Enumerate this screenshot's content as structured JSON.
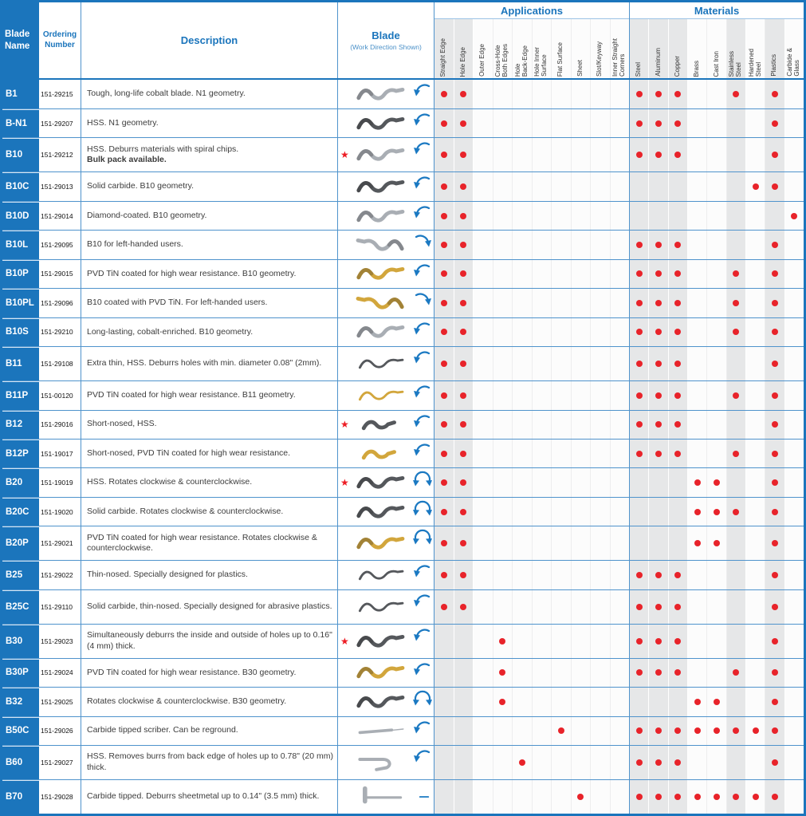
{
  "header": {
    "blade_name": "Blade\nName",
    "ordering_number": "Ordering\nNumber",
    "description": "Description",
    "blade": "Blade",
    "blade_subtitle": "(Work Direction Shown)",
    "applications_title": "Applications",
    "materials_title": "Materials",
    "application_columns": [
      "Straight Edge",
      "Hole Edge",
      "Outer Edge",
      "Cross-Hole\nBoth Edges",
      "Hole\nBack-Edge",
      "Hole Inner\nSurface",
      "Flat Surface",
      "Sheet",
      "Slot/Keyway",
      "Inner Straight\nCorners"
    ],
    "material_columns": [
      "Steel",
      "Aluminum",
      "Copper",
      "Brass",
      "Cast Iron",
      "Stainless\nSteel",
      "Hardened\nSteel",
      "Plastics",
      "Carbide &\nGlass"
    ]
  },
  "icons": {
    "star": "★"
  },
  "colors": {
    "accent_blue": "#1B75BC",
    "grid_line_blue": "#4F93CC",
    "dot_red": "#E8232A",
    "star_red": "#ED1C24",
    "shaded_column": "#E6E7E8",
    "tin_gold": "#D2A63C"
  },
  "rows": [
    {
      "name": "B1",
      "order": "151-29215",
      "desc": "Tough, long-life cobalt blade. N1 geometry.",
      "star": false,
      "shape": "s",
      "color": "silver",
      "mirror": false,
      "arrow": "cw",
      "tall": false,
      "apps": [
        0,
        1
      ],
      "mats": [
        0,
        1,
        2,
        5,
        7
      ]
    },
    {
      "name": "B-N1",
      "order": "151-29207",
      "desc": "HSS. N1 geometry.",
      "star": false,
      "shape": "s",
      "color": "dark",
      "mirror": false,
      "arrow": "cw",
      "tall": false,
      "apps": [
        0,
        1
      ],
      "mats": [
        0,
        1,
        2,
        7
      ]
    },
    {
      "name": "B10",
      "order": "151-29212",
      "desc": "HSS. Deburrs materials with spiral chips.",
      "desc2": "Bulk pack available.",
      "star": true,
      "shape": "s",
      "color": "silver",
      "mirror": false,
      "arrow": "cw",
      "tall": true,
      "apps": [
        0,
        1
      ],
      "mats": [
        0,
        1,
        2,
        7
      ]
    },
    {
      "name": "B10C",
      "order": "151-29013",
      "desc": "Solid carbide. B10 geometry.",
      "star": false,
      "shape": "s",
      "color": "dark",
      "mirror": false,
      "arrow": "cw",
      "tall": false,
      "apps": [
        0,
        1
      ],
      "mats": [
        6,
        7
      ]
    },
    {
      "name": "B10D",
      "order": "151-29014",
      "desc": "Diamond-coated. B10 geometry.",
      "star": false,
      "shape": "s",
      "color": "silver",
      "mirror": false,
      "arrow": "cw",
      "tall": false,
      "apps": [
        0,
        1
      ],
      "mats": [
        8
      ]
    },
    {
      "name": "B10L",
      "order": "151-29095",
      "desc": "B10 for left-handed users.",
      "star": false,
      "shape": "s",
      "color": "silver",
      "mirror": true,
      "arrow": "ccw",
      "tall": false,
      "apps": [
        0,
        1
      ],
      "mats": [
        0,
        1,
        2,
        7
      ]
    },
    {
      "name": "B10P",
      "order": "151-29015",
      "desc": "PVD TiN coated for high wear resistance. B10 geometry.",
      "star": false,
      "shape": "s",
      "color": "gold",
      "mirror": false,
      "arrow": "cw",
      "tall": false,
      "apps": [
        0,
        1
      ],
      "mats": [
        0,
        1,
        2,
        5,
        7
      ]
    },
    {
      "name": "B10PL",
      "order": "151-29096",
      "desc": "B10 coated with PVD TiN. For left-handed users.",
      "star": false,
      "shape": "s",
      "color": "gold",
      "mirror": true,
      "arrow": "ccw",
      "tall": false,
      "apps": [
        0,
        1
      ],
      "mats": [
        0,
        1,
        2,
        5,
        7
      ]
    },
    {
      "name": "B10S",
      "order": "151-29210",
      "desc": "Long-lasting, cobalt-enriched. B10 geometry.",
      "star": false,
      "shape": "s",
      "color": "silver",
      "mirror": false,
      "arrow": "cw",
      "tall": false,
      "apps": [
        0,
        1
      ],
      "mats": [
        0,
        1,
        2,
        5,
        7
      ]
    },
    {
      "name": "B11",
      "order": "151-29108",
      "desc": "Extra thin, HSS. Deburrs holes with min. diameter 0.08\" (2mm).",
      "star": false,
      "shape": "thin",
      "color": "dark",
      "mirror": false,
      "arrow": "cw",
      "tall": true,
      "apps": [
        0,
        1
      ],
      "mats": [
        0,
        1,
        2,
        7
      ]
    },
    {
      "name": "B11P",
      "order": "151-00120",
      "desc": "PVD TiN coated for high wear resistance. B11 geometry.",
      "star": false,
      "shape": "thin",
      "color": "gold",
      "mirror": false,
      "arrow": "cw",
      "tall": false,
      "apps": [
        0,
        1
      ],
      "mats": [
        0,
        1,
        2,
        5,
        7
      ]
    },
    {
      "name": "B12",
      "order": "151-29016",
      "desc": "Short-nosed, HSS.",
      "star": true,
      "shape": "short",
      "color": "dark",
      "mirror": false,
      "arrow": "cw",
      "tall": false,
      "apps": [
        0,
        1
      ],
      "mats": [
        0,
        1,
        2,
        7
      ]
    },
    {
      "name": "B12P",
      "order": "151-19017",
      "desc": "Short-nosed, PVD TiN coated for high wear resistance.",
      "star": false,
      "shape": "short",
      "color": "gold",
      "mirror": false,
      "arrow": "cw",
      "tall": false,
      "apps": [
        0,
        1
      ],
      "mats": [
        0,
        1,
        2,
        5,
        7
      ]
    },
    {
      "name": "B20",
      "order": "151-19019",
      "desc": "HSS. Rotates clockwise & counterclockwise.",
      "star": true,
      "shape": "s",
      "color": "dark",
      "mirror": false,
      "arrow": "both",
      "tall": false,
      "apps": [
        0,
        1
      ],
      "mats": [
        3,
        4,
        7
      ]
    },
    {
      "name": "B20C",
      "order": "151-19020",
      "desc": "Solid carbide. Rotates clockwise & counterclockwise.",
      "star": false,
      "shape": "s",
      "color": "dark",
      "mirror": false,
      "arrow": "both",
      "tall": false,
      "apps": [
        0,
        1
      ],
      "mats": [
        3,
        4,
        5,
        7
      ]
    },
    {
      "name": "B20P",
      "order": "151-29021",
      "desc": "PVD TiN coated for high wear resistance. Rotates clockwise & counterclockwise.",
      "star": false,
      "shape": "s",
      "color": "gold",
      "mirror": false,
      "arrow": "both",
      "tall": true,
      "apps": [
        0,
        1
      ],
      "mats": [
        3,
        4,
        7
      ]
    },
    {
      "name": "B25",
      "order": "151-29022",
      "desc": "Thin-nosed. Specially designed for plastics.",
      "star": false,
      "shape": "thin",
      "color": "dark",
      "mirror": false,
      "arrow": "cw",
      "tall": false,
      "apps": [
        0,
        1
      ],
      "mats": [
        0,
        1,
        2,
        7
      ]
    },
    {
      "name": "B25C",
      "order": "151-29110",
      "desc": "Solid carbide, thin-nosed. Specially designed for abrasive plastics.",
      "star": false,
      "shape": "thin",
      "color": "dark",
      "mirror": false,
      "arrow": "cw",
      "tall": true,
      "apps": [
        0,
        1
      ],
      "mats": [
        0,
        1,
        2,
        7
      ]
    },
    {
      "name": "B30",
      "order": "151-29023",
      "desc": "Simultaneously deburrs the inside and outside of holes up to 0.16\" (4 mm) thick.",
      "star": true,
      "shape": "s",
      "color": "dark",
      "mirror": false,
      "arrow": "cw",
      "tall": true,
      "apps": [
        3
      ],
      "mats": [
        0,
        1,
        2,
        7
      ]
    },
    {
      "name": "B30P",
      "order": "151-29024",
      "desc": "PVD TiN coated for high wear resistance. B30 geometry.",
      "star": false,
      "shape": "s",
      "color": "gold",
      "mirror": false,
      "arrow": "cw",
      "tall": false,
      "apps": [
        3
      ],
      "mats": [
        0,
        1,
        2,
        5,
        7
      ]
    },
    {
      "name": "B32",
      "order": "151-29025",
      "desc": "Rotates clockwise & counterclockwise. B30 geometry.",
      "star": false,
      "shape": "s",
      "color": "dark",
      "mirror": false,
      "arrow": "both",
      "tall": false,
      "apps": [
        3
      ],
      "mats": [
        3,
        4,
        7
      ]
    },
    {
      "name": "B50C",
      "order": "151-29026",
      "desc": "Carbide tipped scriber. Can be reground.",
      "star": false,
      "shape": "straight",
      "color": "silver",
      "mirror": false,
      "arrow": "cw",
      "tall": false,
      "apps": [
        6
      ],
      "mats": [
        0,
        1,
        2,
        3,
        4,
        5,
        6,
        7
      ]
    },
    {
      "name": "B60",
      "order": "151-29027",
      "desc": "HSS. Removes burrs from back edge of holes up to 0.78\" (20 mm) thick.",
      "star": false,
      "shape": "hook",
      "color": "silver",
      "mirror": false,
      "arrow": "cw",
      "tall": true,
      "apps": [
        4
      ],
      "mats": [
        0,
        1,
        2,
        7
      ]
    },
    {
      "name": "B70",
      "order": "151-29028",
      "desc": "Carbide tipped. Deburrs sheetmetal up to 0.14\" (3.5 mm) thick.",
      "star": false,
      "shape": "L",
      "color": "silver",
      "mirror": false,
      "arrow": "line",
      "tall": true,
      "apps": [
        7
      ],
      "mats": [
        0,
        1,
        2,
        3,
        4,
        5,
        6,
        7
      ]
    }
  ]
}
